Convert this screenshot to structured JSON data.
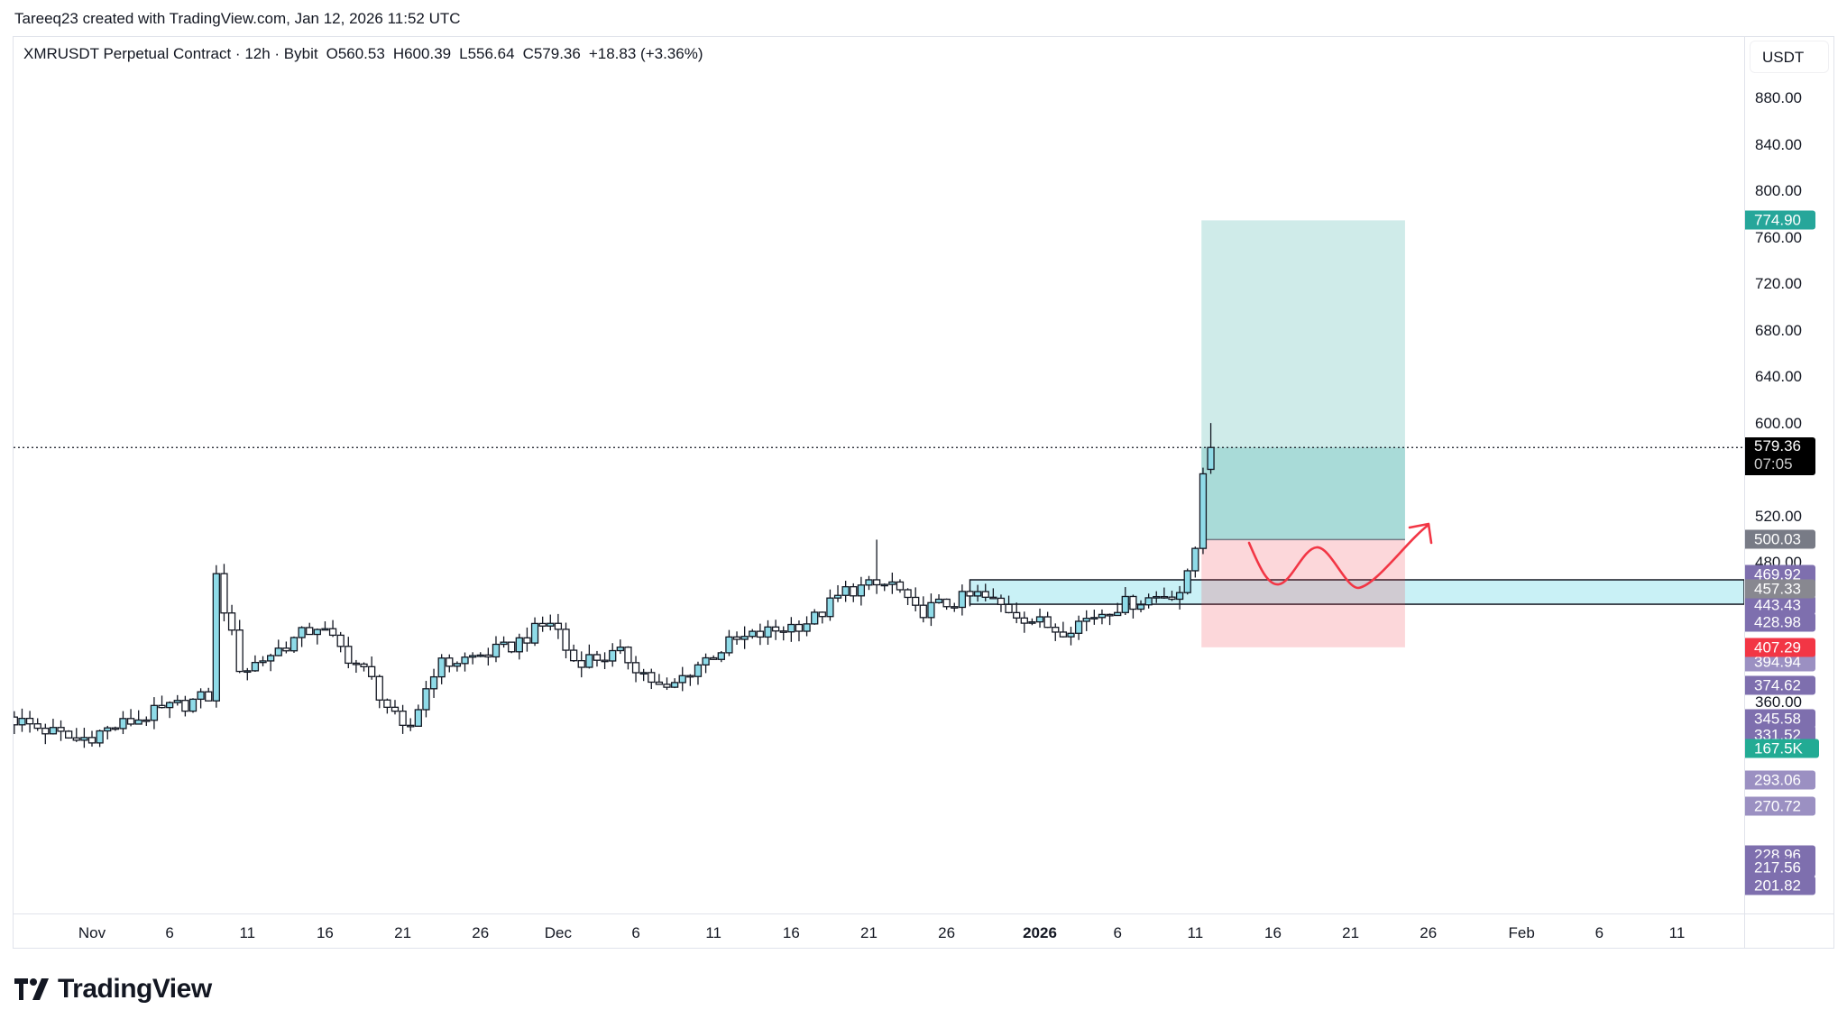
{
  "credit": "Tareeq23 created with TradingView.com, Jan 12, 2026 11:52 UTC",
  "legend": {
    "symbol": "XMRUSDT Perpetual Contract · 12h · Bybit",
    "open": "O560.53",
    "high": "H600.39",
    "low": "L556.64",
    "close": "C579.36",
    "change": "+18.83 (+3.36%)"
  },
  "currency_button": "USDT",
  "brand": "TradingView",
  "colors": {
    "up_fill": "#8fdbe8",
    "down_fill": "#ffffff",
    "outline": "#131722",
    "target": "#26a69a",
    "stop": "#f23645",
    "zone": "#b2ebf2",
    "purple": "#7e6fae",
    "annotation": "#f23645"
  },
  "chart_data": {
    "type": "candlestick",
    "interval": "12h",
    "ylim": [
      180,
      910
    ],
    "y_ticks": [
      "880.00",
      "840.00",
      "800.00",
      "760.00",
      "720.00",
      "680.00",
      "640.00",
      "600.00",
      "520.00",
      "480.00",
      "360.00"
    ],
    "y_tick_values": [
      880,
      840,
      800,
      760,
      720,
      680,
      640,
      600,
      520,
      480,
      360
    ],
    "x_ticks": [
      {
        "label": "Nov",
        "day": 0
      },
      {
        "label": "6",
        "day": 5
      },
      {
        "label": "11",
        "day": 10
      },
      {
        "label": "16",
        "day": 15
      },
      {
        "label": "21",
        "day": 20
      },
      {
        "label": "26",
        "day": 25
      },
      {
        "label": "Dec",
        "day": 30
      },
      {
        "label": "6",
        "day": 35
      },
      {
        "label": "11",
        "day": 40
      },
      {
        "label": "16",
        "day": 45
      },
      {
        "label": "21",
        "day": 50
      },
      {
        "label": "26",
        "day": 55
      },
      {
        "label": "2026",
        "day": 61,
        "bold": true
      },
      {
        "label": "6",
        "day": 66
      },
      {
        "label": "11",
        "day": 71
      },
      {
        "label": "16",
        "day": 76
      },
      {
        "label": "21",
        "day": 81
      },
      {
        "label": "26",
        "day": 86
      },
      {
        "label": "Feb",
        "day": 92
      },
      {
        "label": "6",
        "day": 97
      },
      {
        "label": "11",
        "day": 102
      }
    ],
    "approx_close_path": [
      [
        -5,
        345
      ],
      [
        -1,
        327
      ],
      [
        3.9,
        350
      ],
      [
        7.5,
        365
      ],
      [
        8,
        467
      ],
      [
        9.6,
        386
      ],
      [
        14.5,
        426
      ],
      [
        17.9,
        381
      ],
      [
        20.2,
        330
      ],
      [
        22.1,
        391
      ],
      [
        26.7,
        406
      ],
      [
        29.7,
        431
      ],
      [
        30.8,
        396
      ],
      [
        34.2,
        401
      ],
      [
        36.9,
        368
      ],
      [
        38.8,
        391
      ],
      [
        41.1,
        411
      ],
      [
        46.4,
        431
      ],
      [
        48.6,
        457
      ],
      [
        51.7,
        462
      ],
      [
        52.8,
        437
      ],
      [
        57,
        452
      ],
      [
        60.8,
        429
      ],
      [
        62.3,
        422
      ],
      [
        65.7,
        442
      ],
      [
        70.3,
        457
      ],
      [
        71,
        493
      ],
      [
        71.5,
        560.53
      ]
    ],
    "last_candle": {
      "open": 560.53,
      "high": 600.39,
      "low": 556.64,
      "close": 579.36
    },
    "last_price": {
      "value": "579.36",
      "countdown": "07:05",
      "price": 579.36
    },
    "long_position": {
      "target": 774.9,
      "entry": 500.03,
      "stop": 407.29,
      "start_day": 71.4,
      "end_day": 84.5
    },
    "zone": {
      "top": 465.4,
      "bottom": 444.4,
      "start_day": 56.5
    },
    "price_tags": [
      {
        "label": "774.90",
        "price": 774.9,
        "color": "#26a69a"
      },
      {
        "label": "500.03",
        "price": 500.03,
        "color": "#787b86"
      },
      {
        "label": "469.92",
        "price": 469.92,
        "color": "#7e6fae"
      },
      {
        "label": "443.43",
        "price": 443.43,
        "color": "#7e6fae"
      },
      {
        "label": "428.98",
        "price": 428.98,
        "color": "#7e6fae"
      },
      {
        "label": "457.33",
        "price": 457.33,
        "color": "#888890"
      },
      {
        "label": "394.94",
        "price": 394.94,
        "color": "#9b90c2"
      },
      {
        "label": "407.29",
        "price": 407.29,
        "color": "#f23645"
      },
      {
        "label": "374.62",
        "price": 374.62,
        "color": "#7e6fae"
      },
      {
        "label": "331.52",
        "price": 331.52,
        "color": "#7e6fae"
      },
      {
        "label": "345.58",
        "price": 345.58,
        "color": "#7e6fae"
      },
      {
        "label": "293.06",
        "price": 293.06,
        "color": "#9b90c2"
      },
      {
        "label": "270.72",
        "price": 270.72,
        "color": "#9b90c2"
      },
      {
        "label": "228.96",
        "price": 228.96,
        "color": "#7e6fae"
      },
      {
        "label": "217.56",
        "price": 217.56,
        "color": "#7e6fae"
      },
      {
        "label": "201.82",
        "price": 201.82,
        "color": "#7e6fae"
      }
    ],
    "volume_tag": {
      "label": "167.5K",
      "color": "#22ab94"
    }
  }
}
